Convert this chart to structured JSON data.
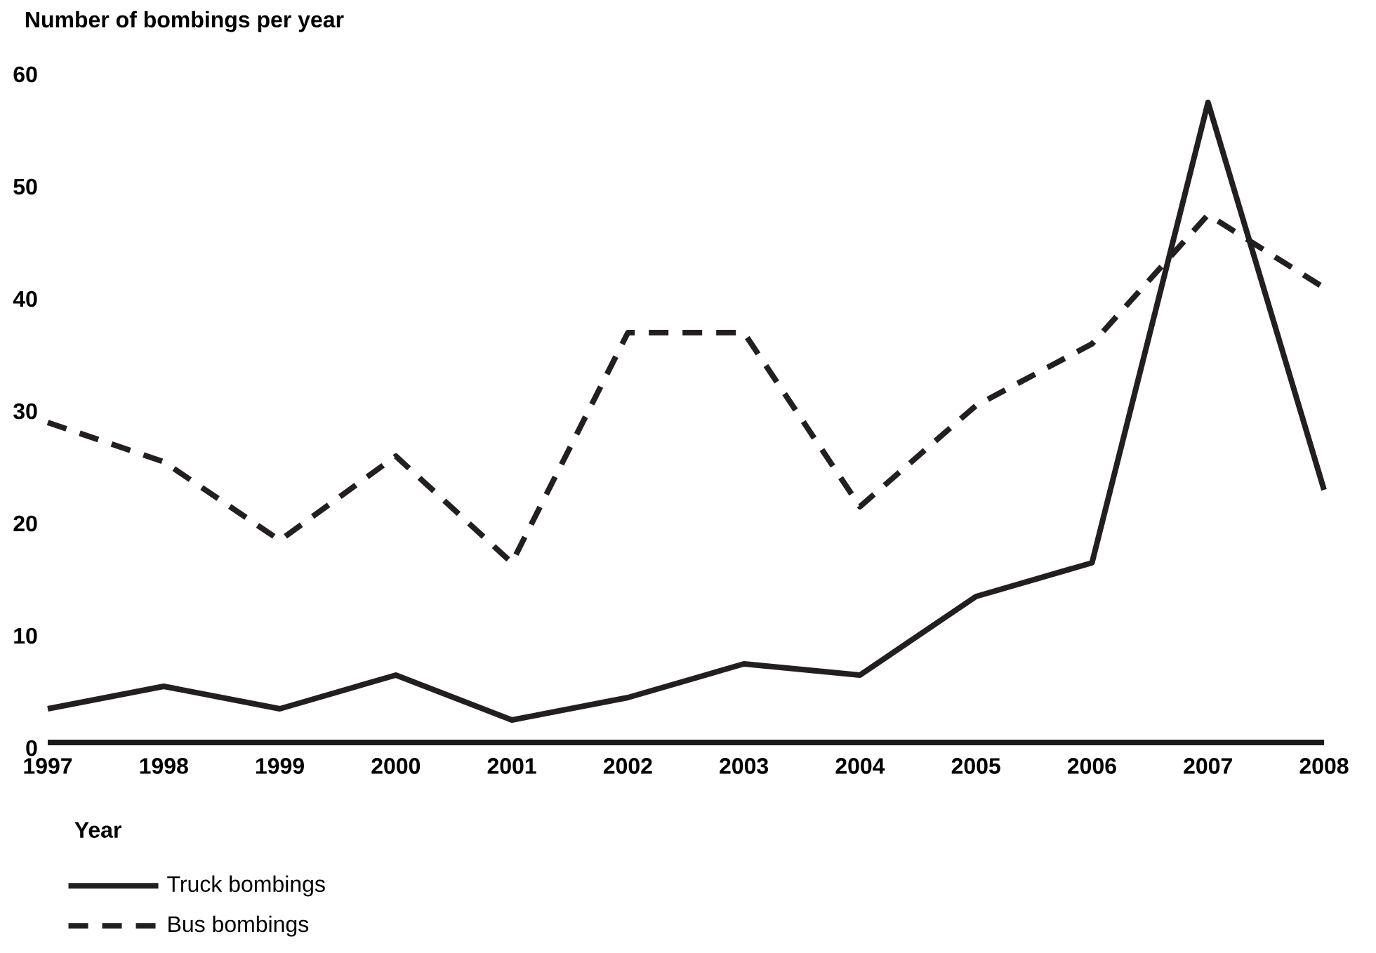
{
  "chart_data": {
    "type": "line",
    "ylabel": "Number of bombings per year",
    "xlabel": "Year",
    "x": [
      1997,
      1998,
      1999,
      2000,
      2001,
      2002,
      2003,
      2004,
      2005,
      2006,
      2007,
      2008
    ],
    "series": [
      {
        "name": "Truck bombings",
        "color": "#231f20",
        "line_style": "solid",
        "values": [
          3,
          5,
          3,
          6,
          2,
          4,
          7,
          6,
          13,
          16,
          57,
          22.5
        ]
      },
      {
        "name": "Bus bombings",
        "color": "#231f20",
        "line_style": "dashed",
        "values": [
          28.5,
          25,
          18,
          25.5,
          16,
          36.5,
          36.5,
          21,
          30,
          35.5,
          47,
          40.5
        ]
      }
    ],
    "xlim": [
      1997,
      2008
    ],
    "ylim": [
      0,
      60
    ],
    "xticks": [
      1997,
      1998,
      1999,
      2000,
      2001,
      2002,
      2003,
      2004,
      2005,
      2006,
      2007,
      2008
    ],
    "yticks": [
      0,
      10,
      20,
      30,
      40,
      50,
      60
    ],
    "grid": false,
    "marker": "none",
    "legend": "bottom left"
  }
}
